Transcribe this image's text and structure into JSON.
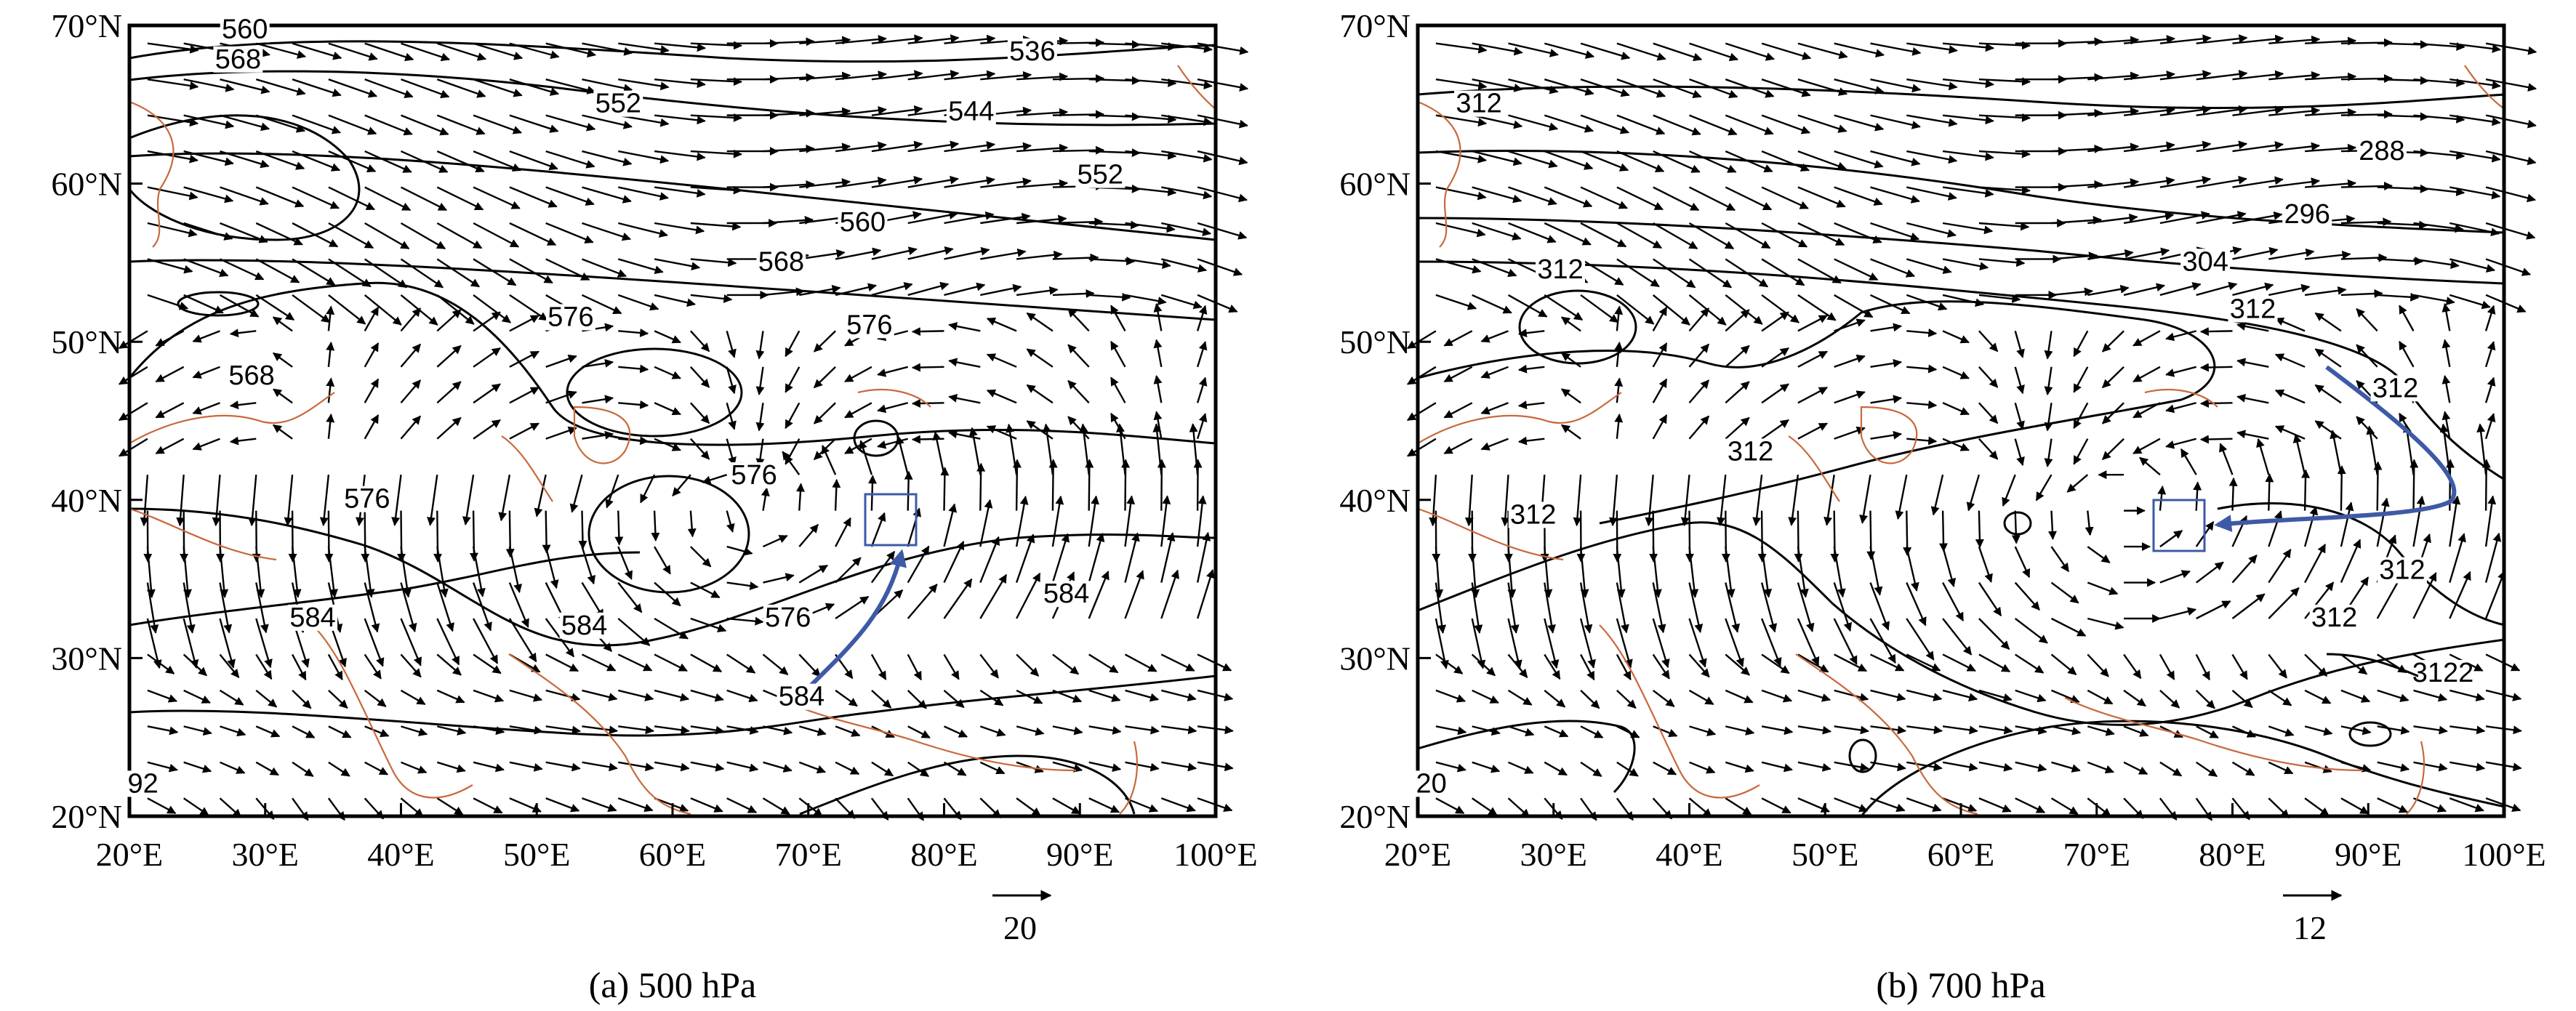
{
  "panels": [
    {
      "caption": "(a) 500 hPa",
      "x_ticks": [
        "20°E",
        "30°E",
        "40°E",
        "50°E",
        "60°E",
        "70°E",
        "80°E",
        "90°E",
        "100°E"
      ],
      "y_ticks": [
        "70°N",
        "60°N",
        "50°N",
        "40°N",
        "30°N",
        "20°N"
      ],
      "ref_vector_label": "20",
      "contour_labels": [
        {
          "text": "560",
          "lon": 28.5,
          "lat": 69.2
        },
        {
          "text": "568",
          "lon": 28.0,
          "lat": 67.3
        },
        {
          "text": "552",
          "lon": 56.0,
          "lat": 64.5
        },
        {
          "text": "536",
          "lon": 86.5,
          "lat": 67.8
        },
        {
          "text": "544",
          "lon": 82.0,
          "lat": 64.0
        },
        {
          "text": "552",
          "lon": 91.5,
          "lat": 60.0
        },
        {
          "text": "560",
          "lon": 74.0,
          "lat": 57.0
        },
        {
          "text": "568",
          "lon": 68.0,
          "lat": 54.5
        },
        {
          "text": "576",
          "lon": 52.5,
          "lat": 51.0
        },
        {
          "text": "576",
          "lon": 74.5,
          "lat": 50.5
        },
        {
          "text": "568",
          "lon": 29.0,
          "lat": 47.3
        },
        {
          "text": "576",
          "lon": 66.0,
          "lat": 41.0
        },
        {
          "text": "576",
          "lon": 37.5,
          "lat": 39.5
        },
        {
          "text": "584",
          "lon": 33.5,
          "lat": 32.0
        },
        {
          "text": "584",
          "lon": 53.5,
          "lat": 31.5
        },
        {
          "text": "576",
          "lon": 68.5,
          "lat": 32.0
        },
        {
          "text": "584",
          "lon": 89.0,
          "lat": 33.5
        },
        {
          "text": "584",
          "lon": 69.5,
          "lat": 27.0
        },
        {
          "text": "92",
          "lon": 21.0,
          "lat": 21.5
        }
      ]
    },
    {
      "caption": "(b) 700 hPa",
      "x_ticks": [
        "20°E",
        "30°E",
        "40°E",
        "50°E",
        "60°E",
        "70°E",
        "80°E",
        "90°E",
        "100°E"
      ],
      "y_ticks": [
        "70°N",
        "60°N",
        "50°N",
        "40°N",
        "30°N",
        "20°N"
      ],
      "ref_vector_label": "12",
      "contour_labels": [
        {
          "text": "312",
          "lon": 24.5,
          "lat": 64.5
        },
        {
          "text": "288",
          "lon": 91.0,
          "lat": 61.5
        },
        {
          "text": "296",
          "lon": 85.5,
          "lat": 57.5
        },
        {
          "text": "304",
          "lon": 78.0,
          "lat": 54.5
        },
        {
          "text": "312",
          "lon": 30.5,
          "lat": 54.0
        },
        {
          "text": "312",
          "lon": 81.5,
          "lat": 51.5
        },
        {
          "text": "312",
          "lon": 92.0,
          "lat": 46.5
        },
        {
          "text": "312",
          "lon": 44.5,
          "lat": 42.5
        },
        {
          "text": "312",
          "lon": 28.5,
          "lat": 38.5
        },
        {
          "text": "312",
          "lon": 92.5,
          "lat": 35.0
        },
        {
          "text": "312",
          "lon": 87.5,
          "lat": 32.0
        },
        {
          "text": "3122",
          "lon": 95.5,
          "lat": 28.5
        },
        {
          "text": "20",
          "lon": 21.0,
          "lat": 21.5
        }
      ]
    }
  ],
  "colors": {
    "frame": "#000000",
    "coastline": "#c8693c",
    "target_box": "#3e5aa6",
    "moisture_arrow": "#3e5aa6"
  }
}
